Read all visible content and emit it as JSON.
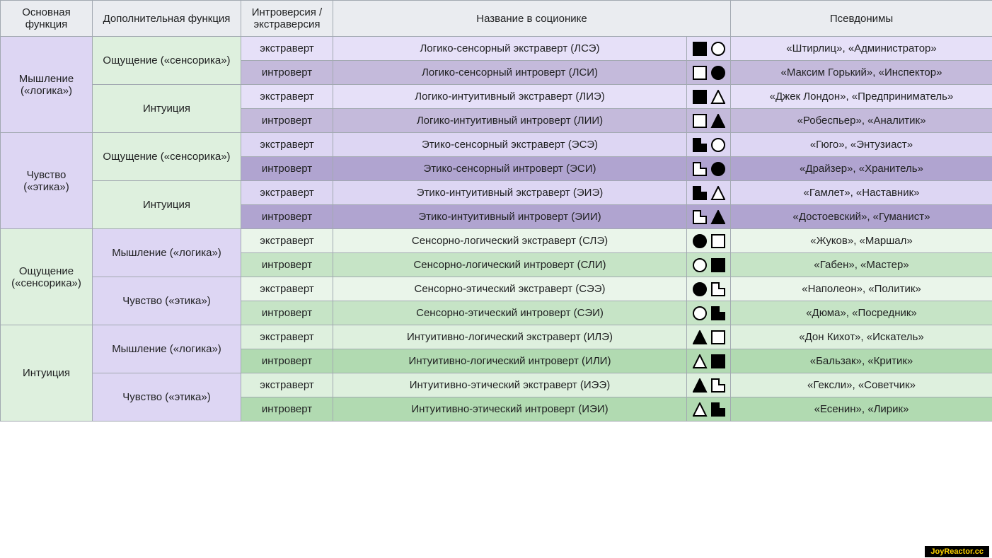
{
  "headers": {
    "col1": "Основная функция",
    "col2": "Дополнительная функция",
    "col3": "Интроверсия / экстраверсия",
    "col4": "Название в соционике",
    "col6": "Псевдонимы"
  },
  "mainFunctions": {
    "thinking": "Мышление («логика»)",
    "feeling": "Чувство («этика»)",
    "sensing": "Ощущение («сенсорика»)",
    "intuition": "Интуиция"
  },
  "auxFunctions": {
    "sensing": "Ощущение («сенсорика»)",
    "intuition": "Интуиция",
    "thinking": "Мышление («логика»)",
    "feeling": "Чувство («этика»)"
  },
  "vertLabels": {
    "extra": "экстраверт",
    "intro": "интроверт"
  },
  "rows": {
    "r1": {
      "name": "Логико-сенсорный экстраверт (ЛСЭ)",
      "pseud": "«Штирлиц», «Администратор»"
    },
    "r2": {
      "name": "Логико-сенсорный интроверт (ЛСИ)",
      "pseud": "«Максим Горький», «Инспектор»"
    },
    "r3": {
      "name": "Логико-интуитивный экстраверт (ЛИЭ)",
      "pseud": "«Джек Лондон», «Предприниматель»"
    },
    "r4": {
      "name": "Логико-интуитивный интроверт (ЛИИ)",
      "pseud": "«Робеспьер», «Аналитик»"
    },
    "r5": {
      "name": "Этико-сенсорный экстраверт (ЭСЭ)",
      "pseud": "«Гюго», «Энтузиаст»"
    },
    "r6": {
      "name": "Этико-сенсорный интроверт (ЭСИ)",
      "pseud": "«Драйзер», «Хранитель»"
    },
    "r7": {
      "name": "Этико-интуитивный экстраверт (ЭИЭ)",
      "pseud": "«Гамлет», «Наставник»"
    },
    "r8": {
      "name": "Этико-интуитивный интроверт (ЭИИ)",
      "pseud": "«Достоевский», «Гуманист»"
    },
    "r9": {
      "name": "Сенсорно-логический экстраверт (СЛЭ)",
      "pseud": "«Жуков», «Маршал»"
    },
    "r10": {
      "name": "Сенсорно-логический интроверт (СЛИ)",
      "pseud": "«Габен», «Мастер»"
    },
    "r11": {
      "name": "Сенсорно-этический экстраверт (СЭЭ)",
      "pseud": "«Наполеон», «Политик»"
    },
    "r12": {
      "name": "Сенсорно-этический интроверт (СЭИ)",
      "pseud": "«Дюма», «Посредник»"
    },
    "r13": {
      "name": "Интуитивно-логический экстраверт (ИЛЭ)",
      "pseud": "«Дон Кихот», «Искатель»"
    },
    "r14": {
      "name": "Интуитивно-логический интроверт (ИЛИ)",
      "pseud": "«Бальзак», «Критик»"
    },
    "r15": {
      "name": "Интуитивно-этический экстраверт (ИЭЭ)",
      "pseud": "«Гексли», «Советчик»"
    },
    "r16": {
      "name": "Интуитивно-этический интроверт (ИЭИ)",
      "pseud": "«Есенин», «Лирик»"
    }
  },
  "symbols": {
    "r1": [
      "sq-f",
      "ci-o"
    ],
    "r2": [
      "sq-o",
      "ci-f"
    ],
    "r3": [
      "sq-f",
      "tr-o"
    ],
    "r4": [
      "sq-o",
      "tr-f"
    ],
    "r5": [
      "el-f",
      "ci-o"
    ],
    "r6": [
      "el-o",
      "ci-f"
    ],
    "r7": [
      "el-f",
      "tr-o"
    ],
    "r8": [
      "el-o",
      "tr-f"
    ],
    "r9": [
      "ci-f",
      "sq-o"
    ],
    "r10": [
      "ci-o",
      "sq-f"
    ],
    "r11": [
      "ci-f",
      "el-o"
    ],
    "r12": [
      "ci-o",
      "el-f"
    ],
    "r13": [
      "tr-f",
      "sq-o"
    ],
    "r14": [
      "tr-o",
      "sq-f"
    ],
    "r15": [
      "tr-f",
      "el-o"
    ],
    "r16": [
      "tr-o",
      "el-f"
    ]
  },
  "symbolStyle": {
    "size": 20,
    "stroke": "#000000",
    "fill": "#000000",
    "bg": "#ffffff",
    "strokeWidth": 2,
    "gap": 6
  },
  "colors": {
    "headerBg": "#eaecf0",
    "border": "#a2a9b1",
    "lav0": "#e6e0f8",
    "lav1": "#ddd6f3",
    "lav2": "#c4badb",
    "lav3": "#b0a4d0",
    "grn0": "#eaf5ea",
    "grn1": "#def0de",
    "grn2": "#c6e4c6",
    "grn3": "#b1dab1"
  },
  "fonts": {
    "body": 15,
    "family": "Arial"
  },
  "columnWidths": {
    "col1": 130,
    "col2": 210,
    "col3": 130,
    "col4": 500,
    "col5": 62,
    "col6": 370
  },
  "watermark": "JoyReactor.cc"
}
